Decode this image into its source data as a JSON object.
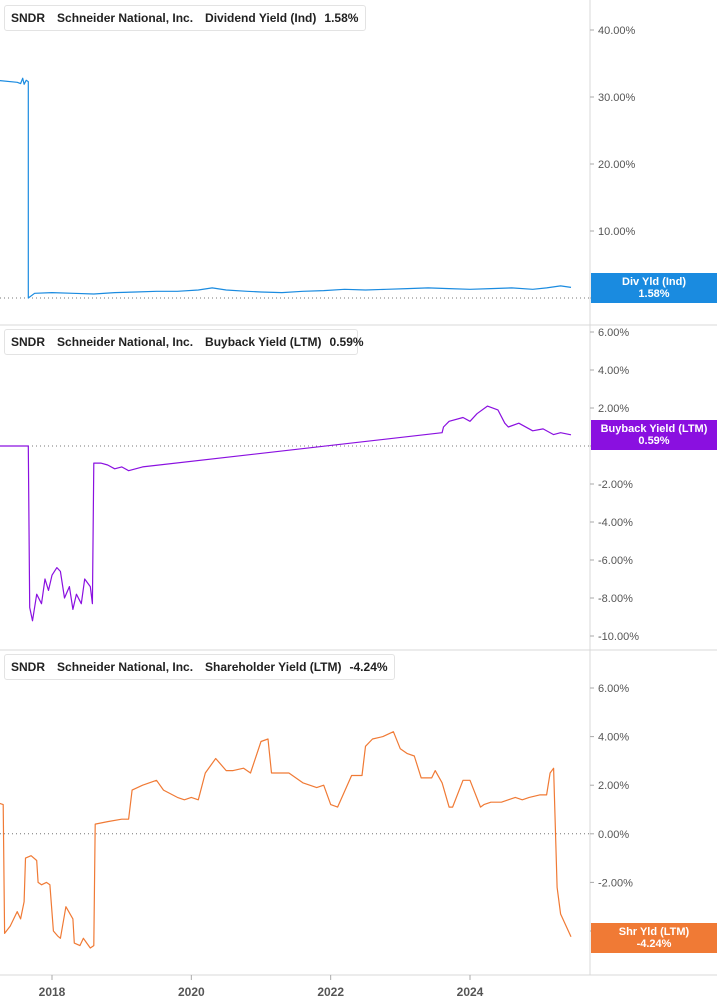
{
  "colors": {
    "dividend": "#1a8be0",
    "buyback": "#8a10e0",
    "shareholder": "#f07a35",
    "grid_line": "#d9d9d9",
    "tick_text": "#555555",
    "zero_line": "#777777"
  },
  "x_axis": {
    "ticks": [
      "2018",
      "2020",
      "2022",
      "2024"
    ]
  },
  "panels": [
    {
      "ticker": "SNDR",
      "company": "Schneider National, Inc.",
      "metric": "Dividend Yield (Ind)",
      "value": "1.58%",
      "badge_label": "Div Yld (Ind)",
      "badge_value": "1.58%",
      "icon": "series-color-swatch"
    },
    {
      "ticker": "SNDR",
      "company": "Schneider National, Inc.",
      "metric": "Buyback Yield (LTM)",
      "value": "0.59%",
      "badge_label": "Buyback Yield (LTM)",
      "badge_value": "0.59%",
      "icon": "series-color-swatch"
    },
    {
      "ticker": "SNDR",
      "company": "Schneider National, Inc.",
      "metric": "Shareholder Yield (LTM)",
      "value": "-4.24%",
      "badge_label": "Shr Yld (LTM)",
      "badge_value": "-4.24%",
      "icon": "series-color-swatch"
    }
  ],
  "chart_data": [
    {
      "type": "line",
      "title": "SNDR Schneider National, Inc. Dividend Yield (Ind) 1.58%",
      "y_ticks": [
        "40.00%",
        "30.00%",
        "20.00%",
        "10.00%",
        "0.00%"
      ],
      "ylim": [
        0,
        44
      ],
      "series": [
        {
          "name": "Dividend Yield (Ind)",
          "x": [
            2017.2,
            2017.5,
            2017.55,
            2017.58,
            2017.6,
            2017.63,
            2017.66,
            2017.66,
            2017.75,
            2018.0,
            2018.3,
            2018.6,
            2018.9,
            2019.2,
            2019.5,
            2019.8,
            2020.1,
            2020.3,
            2020.5,
            2020.8,
            2021.0,
            2021.3,
            2021.6,
            2021.9,
            2022.2,
            2022.5,
            2022.8,
            2023.1,
            2023.4,
            2023.7,
            2024.0,
            2024.3,
            2024.6,
            2024.9,
            2025.1,
            2025.3,
            2025.45
          ],
          "y": [
            32.5,
            32.2,
            32.0,
            32.8,
            31.9,
            32.5,
            32.3,
            0.0,
            0.7,
            0.8,
            0.7,
            0.6,
            0.8,
            0.9,
            1.0,
            1.0,
            1.2,
            1.5,
            1.2,
            1.0,
            0.9,
            0.8,
            1.0,
            1.1,
            1.3,
            1.2,
            1.3,
            1.4,
            1.5,
            1.4,
            1.3,
            1.4,
            1.5,
            1.3,
            1.5,
            1.8,
            1.58
          ]
        }
      ]
    },
    {
      "type": "line",
      "title": "SNDR Schneider National, Inc. Buyback Yield (LTM) 0.59%",
      "y_ticks": [
        "6.00%",
        "4.00%",
        "2.00%",
        "0.00%",
        "-2.00%",
        "-4.00%",
        "-6.00%",
        "-8.00%",
        "-10.00%"
      ],
      "ylim": [
        -11,
        6.5
      ],
      "series": [
        {
          "name": "Buyback Yield (LTM)",
          "x": [
            2017.0,
            2017.66,
            2017.68,
            2017.72,
            2017.78,
            2017.85,
            2017.9,
            2017.95,
            2018.0,
            2018.07,
            2018.12,
            2018.18,
            2018.25,
            2018.3,
            2018.35,
            2018.42,
            2018.47,
            2018.55,
            2018.58,
            2018.6,
            2018.7,
            2018.8,
            2018.9,
            2019.0,
            2019.1,
            2019.3,
            2023.6,
            2023.62,
            2023.7,
            2023.9,
            2024.0,
            2024.1,
            2024.25,
            2024.4,
            2024.5,
            2024.55,
            2024.7,
            2024.9,
            2025.05,
            2025.2,
            2025.3,
            2025.45
          ],
          "y": [
            0.0,
            0.0,
            -8.5,
            -9.2,
            -7.8,
            -8.3,
            -7.0,
            -7.6,
            -6.8,
            -6.4,
            -6.6,
            -8.0,
            -7.4,
            -8.6,
            -7.8,
            -8.3,
            -7.0,
            -7.4,
            -8.3,
            -0.9,
            -0.9,
            -1.0,
            -1.2,
            -1.1,
            -1.3,
            -1.1,
            0.7,
            1.0,
            1.3,
            1.5,
            1.3,
            1.7,
            2.1,
            1.9,
            1.2,
            1.0,
            1.2,
            0.8,
            0.9,
            0.6,
            0.7,
            0.59
          ]
        }
      ]
    },
    {
      "type": "line",
      "title": "SNDR Schneider National, Inc. Shareholder Yield (LTM) -4.24%",
      "y_ticks": [
        "6.00%",
        "4.00%",
        "2.00%",
        "0.00%",
        "-2.00%",
        "-4.00%"
      ],
      "ylim": [
        -5.8,
        6.8
      ],
      "series": [
        {
          "name": "Shareholder Yield (LTM)",
          "x": [
            2017.0,
            2017.08,
            2017.1,
            2017.2,
            2017.3,
            2017.32,
            2017.4,
            2017.5,
            2017.55,
            2017.6,
            2017.62,
            2017.7,
            2017.78,
            2017.8,
            2017.85,
            2017.92,
            2017.97,
            2018.02,
            2018.08,
            2018.12,
            2018.2,
            2018.3,
            2018.32,
            2018.4,
            2018.45,
            2018.5,
            2018.55,
            2018.6,
            2018.62,
            2018.8,
            2019.0,
            2019.1,
            2019.15,
            2019.3,
            2019.5,
            2019.6,
            2019.8,
            2019.9,
            2020.0,
            2020.1,
            2020.2,
            2020.35,
            2020.5,
            2020.6,
            2020.75,
            2020.85,
            2021.0,
            2021.1,
            2021.15,
            2021.4,
            2021.6,
            2021.8,
            2021.9,
            2022.0,
            2022.1,
            2022.3,
            2022.45,
            2022.5,
            2022.6,
            2022.75,
            2022.9,
            2023.0,
            2023.1,
            2023.2,
            2023.3,
            2023.45,
            2023.5,
            2023.6,
            2023.7,
            2023.75,
            2023.9,
            2024.0,
            2024.15,
            2024.2,
            2024.3,
            2024.45,
            2024.55,
            2024.65,
            2024.75,
            2024.85,
            2025.0,
            2025.1,
            2025.15,
            2025.2,
            2025.25,
            2025.3,
            2025.45
          ],
          "y": [
            -0.9,
            -0.9,
            1.3,
            1.3,
            1.2,
            -4.1,
            -3.8,
            -3.2,
            -3.5,
            -2.8,
            -1.0,
            -0.9,
            -1.1,
            -2.0,
            -2.1,
            -2.0,
            -2.1,
            -4.0,
            -4.2,
            -4.3,
            -3.0,
            -3.5,
            -4.5,
            -4.6,
            -4.3,
            -4.5,
            -4.7,
            -4.6,
            0.4,
            0.5,
            0.6,
            0.6,
            1.8,
            2.0,
            2.2,
            1.8,
            1.5,
            1.4,
            1.5,
            1.4,
            2.5,
            3.1,
            2.6,
            2.6,
            2.7,
            2.5,
            3.8,
            3.9,
            2.5,
            2.5,
            2.1,
            1.9,
            2.0,
            1.2,
            1.1,
            2.4,
            2.4,
            3.6,
            3.9,
            4.0,
            4.2,
            3.5,
            3.3,
            3.2,
            2.3,
            2.3,
            2.6,
            2.1,
            1.1,
            1.1,
            2.2,
            2.2,
            1.1,
            1.2,
            1.3,
            1.3,
            1.4,
            1.5,
            1.4,
            1.5,
            1.6,
            1.6,
            2.5,
            2.7,
            -2.2,
            -3.3,
            -4.24
          ]
        }
      ]
    }
  ]
}
